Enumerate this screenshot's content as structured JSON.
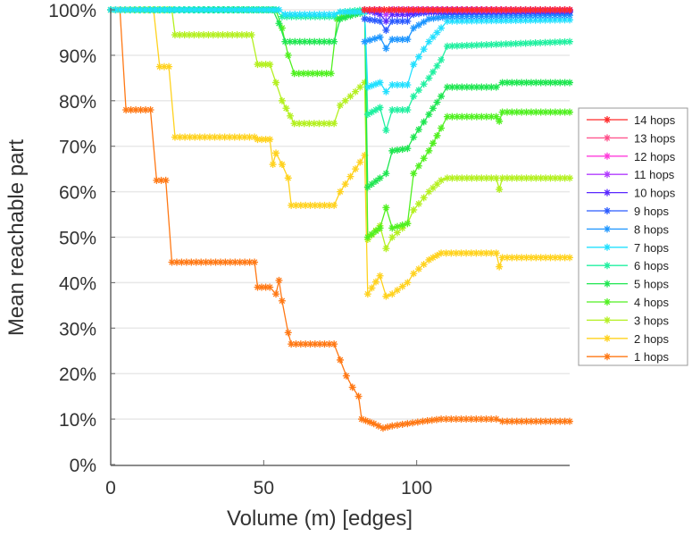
{
  "chart_data": {
    "type": "line",
    "title": "",
    "xlabel": "Volume (m) [edges]",
    "ylabel": "Mean reachable part",
    "xlim": [
      0,
      150
    ],
    "ylim": [
      0,
      100
    ],
    "x_ticks": [
      0,
      50,
      100
    ],
    "x_tick_labels": [
      "0",
      "50",
      "100"
    ],
    "y_ticks": [
      0,
      10,
      20,
      30,
      40,
      50,
      60,
      70,
      80,
      90,
      100
    ],
    "y_tick_labels": [
      "0%",
      "10%",
      "20%",
      "30%",
      "40%",
      "50%",
      "60%",
      "70%",
      "80%",
      "90%",
      "100%"
    ],
    "grid": "horizontal",
    "legend_position": "right",
    "marker": "asterisk",
    "series": [
      {
        "name": "14 hops",
        "color": "#ff2a2a",
        "points": [
          [
            83,
            100
          ],
          [
            150,
            100
          ]
        ]
      },
      {
        "name": "13 hops",
        "color": "#ff4f8a",
        "points": [
          [
            83,
            100
          ],
          [
            150,
            100
          ]
        ]
      },
      {
        "name": "12 hops",
        "color": "#ff3cdc",
        "points": [
          [
            83,
            100
          ],
          [
            150,
            100
          ]
        ]
      },
      {
        "name": "11 hops",
        "color": "#b23cff",
        "points": [
          [
            83,
            100
          ],
          [
            88,
            100
          ],
          [
            90,
            99
          ],
          [
            92,
            100
          ],
          [
            150,
            100
          ]
        ]
      },
      {
        "name": "10 hops",
        "color": "#5a28ff",
        "points": [
          [
            83,
            100
          ],
          [
            88,
            99
          ],
          [
            90,
            97.5
          ],
          [
            92,
            99
          ],
          [
            97,
            99
          ],
          [
            100,
            99.5
          ],
          [
            150,
            99.8
          ]
        ]
      },
      {
        "name": "9 hops",
        "color": "#2a5aff",
        "points": [
          [
            83,
            98
          ],
          [
            88,
            97.5
          ],
          [
            90,
            95.5
          ],
          [
            92,
            97.5
          ],
          [
            97,
            97.5
          ],
          [
            99,
            99
          ],
          [
            104,
            99.5
          ],
          [
            150,
            99.5
          ]
        ]
      },
      {
        "name": "8 hops",
        "color": "#1e96ff",
        "points": [
          [
            83,
            93
          ],
          [
            88,
            94
          ],
          [
            90,
            91.5
          ],
          [
            92,
            93.5
          ],
          [
            97,
            93.5
          ],
          [
            99,
            96
          ],
          [
            104,
            98
          ],
          [
            110,
            98.5
          ],
          [
            150,
            98.8
          ]
        ]
      },
      {
        "name": "7 hops",
        "color": "#22e0ff",
        "points": [
          [
            0,
            100
          ],
          [
            55,
            100
          ],
          [
            57,
            99
          ],
          [
            73,
            99
          ],
          [
            75,
            99.5
          ],
          [
            83,
            99.5
          ],
          [
            84,
            83
          ],
          [
            88,
            84
          ],
          [
            90,
            82
          ],
          [
            92,
            83.5
          ],
          [
            97,
            83.5
          ],
          [
            99,
            88
          ],
          [
            104,
            93
          ],
          [
            108,
            96
          ],
          [
            110,
            97.5
          ],
          [
            150,
            97.8
          ]
        ]
      },
      {
        "name": "6 hops",
        "color": "#20f0a0",
        "points": [
          [
            0,
            100
          ],
          [
            54,
            100
          ],
          [
            56,
            98.5
          ],
          [
            73,
            98.5
          ],
          [
            75,
            99.5
          ],
          [
            83,
            100
          ],
          [
            84,
            77
          ],
          [
            88,
            78.5
          ],
          [
            90,
            73.5
          ],
          [
            92,
            78
          ],
          [
            97,
            78
          ],
          [
            99,
            81
          ],
          [
            104,
            85
          ],
          [
            108,
            89
          ],
          [
            110,
            92
          ],
          [
            150,
            93
          ]
        ]
      },
      {
        "name": "5 hops",
        "color": "#1ee650",
        "points": [
          [
            0,
            100
          ],
          [
            53,
            100
          ],
          [
            55,
            97
          ],
          [
            57,
            93
          ],
          [
            73,
            93
          ],
          [
            75,
            98
          ],
          [
            80,
            99
          ],
          [
            83,
            99.5
          ],
          [
            84,
            61
          ],
          [
            88,
            63
          ],
          [
            90,
            64
          ],
          [
            92,
            69
          ],
          [
            97,
            69.5
          ],
          [
            99,
            72
          ],
          [
            104,
            77
          ],
          [
            108,
            81
          ],
          [
            110,
            83
          ],
          [
            126,
            83
          ],
          [
            128,
            84
          ],
          [
            150,
            84
          ]
        ]
      },
      {
        "name": "4 hops",
        "color": "#50f020",
        "points": [
          [
            0,
            100
          ],
          [
            54,
            100
          ],
          [
            56,
            96
          ],
          [
            58,
            90
          ],
          [
            60,
            86
          ],
          [
            72,
            86
          ],
          [
            74,
            98
          ],
          [
            83,
            100
          ],
          [
            84,
            50
          ],
          [
            88,
            52
          ],
          [
            90,
            56.5
          ],
          [
            92,
            52
          ],
          [
            97,
            53
          ],
          [
            99,
            64
          ],
          [
            104,
            69
          ],
          [
            108,
            74
          ],
          [
            110,
            76.5
          ],
          [
            126,
            76.5
          ],
          [
            127,
            75.5
          ],
          [
            128,
            77.5
          ],
          [
            150,
            77.5
          ]
        ]
      },
      {
        "name": "3 hops",
        "color": "#b4f020",
        "points": [
          [
            0,
            100
          ],
          [
            20,
            100
          ],
          [
            21,
            94.5
          ],
          [
            46,
            94.5
          ],
          [
            48,
            88
          ],
          [
            52,
            88
          ],
          [
            54,
            84
          ],
          [
            56,
            80
          ],
          [
            60,
            75
          ],
          [
            73,
            75
          ],
          [
            75,
            79
          ],
          [
            80,
            82
          ],
          [
            83,
            84
          ],
          [
            84,
            49.5
          ],
          [
            88,
            52.5
          ],
          [
            90,
            47.5
          ],
          [
            92,
            50
          ],
          [
            97,
            53
          ],
          [
            99,
            56
          ],
          [
            104,
            60
          ],
          [
            108,
            62.5
          ],
          [
            110,
            63
          ],
          [
            126,
            63
          ],
          [
            127,
            60.5
          ],
          [
            128,
            63
          ],
          [
            150,
            63
          ]
        ]
      },
      {
        "name": "2 hops",
        "color": "#ffd21e",
        "points": [
          [
            0,
            100
          ],
          [
            14,
            100
          ],
          [
            16,
            87.5
          ],
          [
            19,
            87.5
          ],
          [
            21,
            72
          ],
          [
            47,
            72
          ],
          [
            48,
            71.5
          ],
          [
            52,
            71.5
          ],
          [
            53,
            66
          ],
          [
            54,
            68.5
          ],
          [
            56,
            66
          ],
          [
            58,
            63
          ],
          [
            59,
            57
          ],
          [
            73,
            57
          ],
          [
            75,
            60
          ],
          [
            80,
            65
          ],
          [
            83,
            68
          ],
          [
            84,
            37.5
          ],
          [
            88,
            41.5
          ],
          [
            90,
            37
          ],
          [
            92,
            37.5
          ],
          [
            97,
            40
          ],
          [
            99,
            42
          ],
          [
            104,
            45
          ],
          [
            108,
            46.5
          ],
          [
            126,
            46.5
          ],
          [
            127,
            43.5
          ],
          [
            128,
            45.5
          ],
          [
            150,
            45.5
          ]
        ]
      },
      {
        "name": "1 hops",
        "color": "#ff7814",
        "points": [
          [
            0,
            100
          ],
          [
            3,
            100
          ],
          [
            5,
            78
          ],
          [
            13,
            78
          ],
          [
            15,
            62.5
          ],
          [
            18,
            62.5
          ],
          [
            20,
            44.5
          ],
          [
            47,
            44.5
          ],
          [
            48,
            39
          ],
          [
            52,
            39
          ],
          [
            54,
            37.5
          ],
          [
            55,
            40.5
          ],
          [
            56,
            36
          ],
          [
            58,
            29
          ],
          [
            59,
            26.5
          ],
          [
            73,
            26.5
          ],
          [
            75,
            23
          ],
          [
            77,
            19.5
          ],
          [
            79,
            17
          ],
          [
            81,
            15
          ],
          [
            82,
            10
          ],
          [
            86,
            9
          ],
          [
            89,
            8
          ],
          [
            92,
            8.5
          ],
          [
            97,
            9
          ],
          [
            102,
            9.5
          ],
          [
            108,
            10
          ],
          [
            126,
            10
          ],
          [
            128,
            9.5
          ],
          [
            150,
            9.5
          ]
        ]
      }
    ]
  }
}
